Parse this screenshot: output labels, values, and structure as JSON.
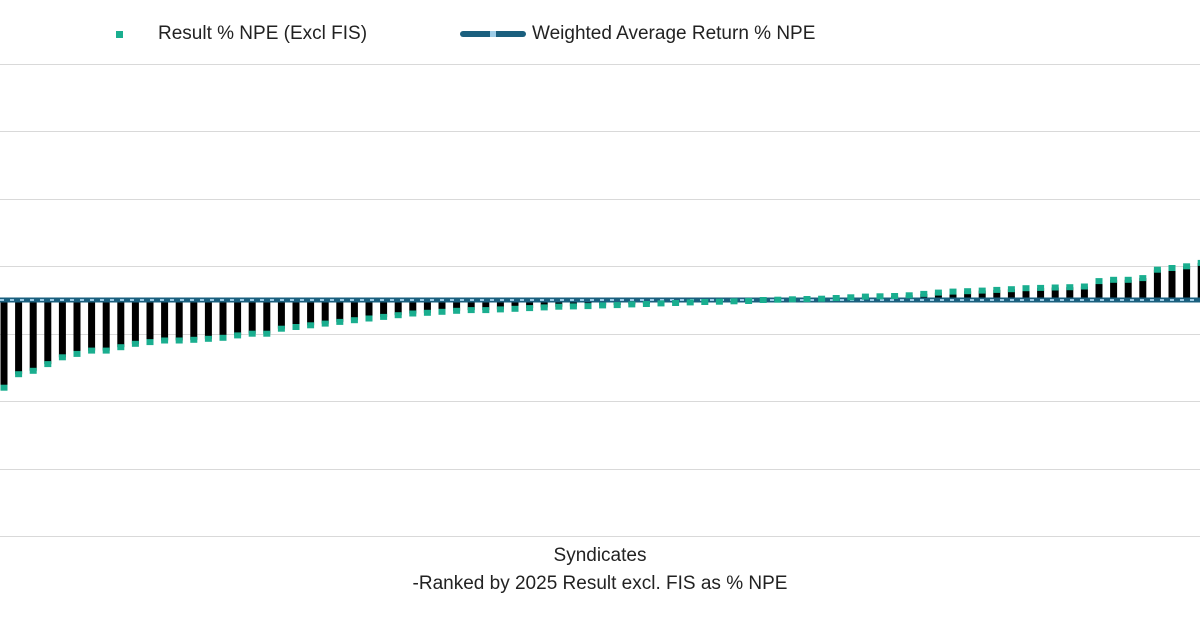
{
  "legend": {
    "series_label": "Result % NPE (Excl FIS)",
    "average_label": "Weighted Average Return % NPE"
  },
  "chart_data": {
    "type": "bar",
    "title": "",
    "xlabel": "Syndicates",
    "xlabel_line2": "-Ranked by 2025 Result excl. FIS as % NPE",
    "ylabel": "",
    "ylim": [
      -0.7,
      0.7
    ],
    "grid": true,
    "legend_position": "top",
    "colors": {
      "bars": "#000000",
      "markers": "#1aae8f",
      "average_line": "#1a5f7e",
      "average_dash": "#9ccbe6",
      "grid": "#d9d9d9"
    },
    "series": [
      {
        "name": "Result % NPE (Excl FIS)",
        "values": [
          -0.26,
          -0.22,
          -0.21,
          -0.19,
          -0.17,
          -0.16,
          -0.15,
          -0.15,
          -0.14,
          -0.13,
          -0.125,
          -0.12,
          -0.12,
          -0.118,
          -0.115,
          -0.112,
          -0.105,
          -0.1,
          -0.1,
          -0.085,
          -0.08,
          -0.075,
          -0.07,
          -0.065,
          -0.06,
          -0.055,
          -0.05,
          -0.045,
          -0.04,
          -0.038,
          -0.035,
          -0.032,
          -0.03,
          -0.03,
          -0.028,
          -0.026,
          -0.024,
          -0.022,
          -0.02,
          -0.019,
          -0.018,
          -0.016,
          -0.015,
          -0.013,
          -0.012,
          -0.01,
          -0.009,
          -0.007,
          -0.006,
          -0.005,
          -0.004,
          -0.003,
          0.0,
          0.001,
          0.002,
          0.003,
          0.004,
          0.006,
          0.008,
          0.01,
          0.011,
          0.012,
          0.014,
          0.018,
          0.022,
          0.025,
          0.026,
          0.028,
          0.03,
          0.032,
          0.035,
          0.036,
          0.037,
          0.038,
          0.04,
          0.056,
          0.06,
          0.06,
          0.065,
          0.09,
          0.095,
          0.1,
          0.11,
          0.11,
          0.11,
          0.11,
          0.14,
          0.18
        ]
      }
    ],
    "average": {
      "name": "Weighted Average Return % NPE",
      "value": 0.0
    }
  }
}
